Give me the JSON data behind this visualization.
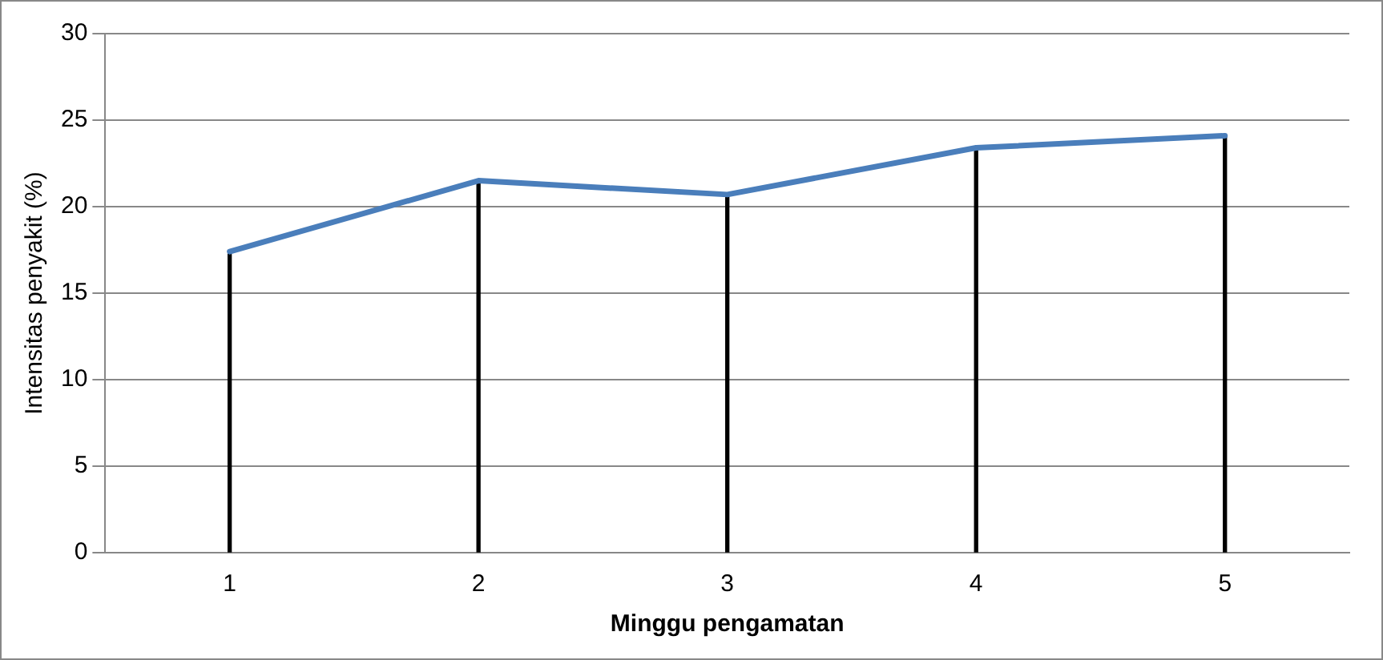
{
  "chart_data": {
    "type": "line",
    "xlabel": "Minggu pengamatan",
    "ylabel": "Intensitas penyakit (%)",
    "categories": [
      "1",
      "2",
      "3",
      "4",
      "5"
    ],
    "series": [
      {
        "type": "bar",
        "color": "#000000",
        "values": [
          17.4,
          21.5,
          20.7,
          23.4,
          24.1
        ]
      },
      {
        "color": "#4a7ebb",
        "values": [
          17.4,
          21.5,
          20.7,
          23.4,
          24.1
        ]
      }
    ],
    "ylim": [
      0,
      30
    ],
    "yticks": [
      0,
      5,
      10,
      15,
      20,
      25,
      30
    ],
    "grid": "y",
    "legend": false,
    "marker": "none",
    "line_style": "solid"
  }
}
